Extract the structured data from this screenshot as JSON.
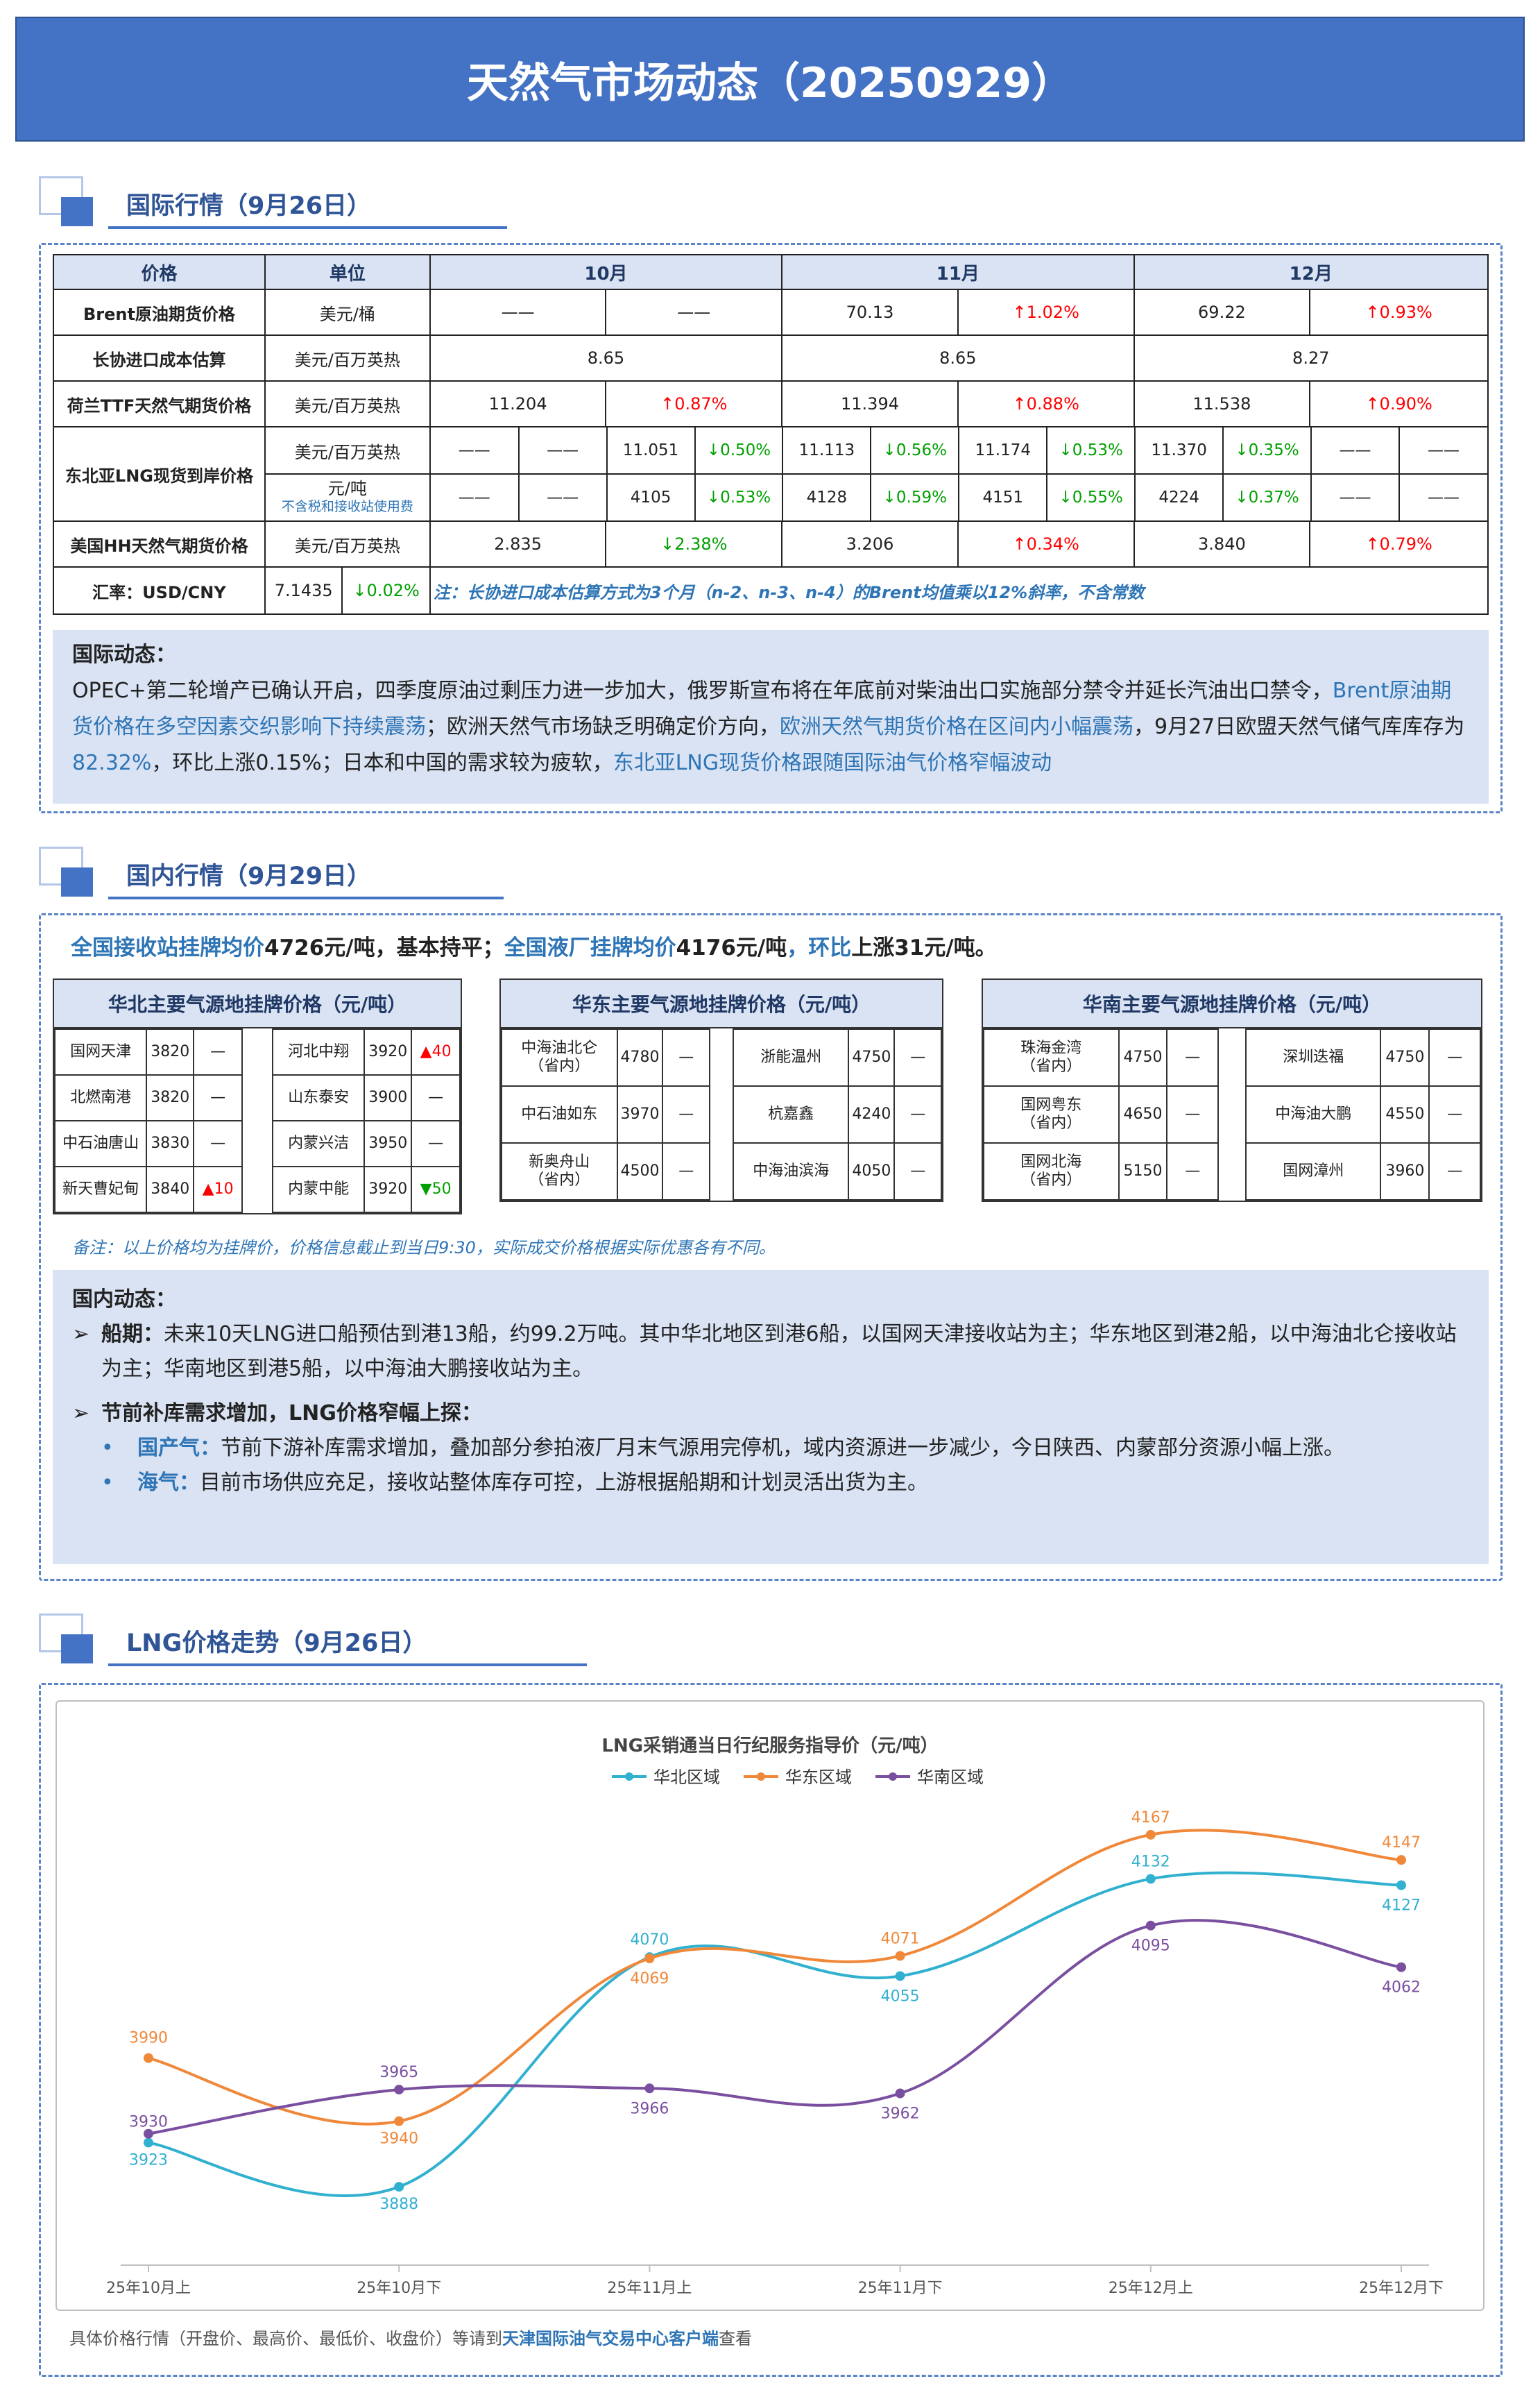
{
  "title": "天然气市场动态（20250929）",
  "sections": {
    "intl": "国际行情（9月26日）",
    "domestic": "国内行情（9月29日）",
    "lng": "LNG价格走势（9月26日）"
  },
  "intl_table": {
    "headers": [
      "价格",
      "单位",
      "10月",
      "11月",
      "12月"
    ],
    "brent": {
      "label": "Brent原油期货价格",
      "unit": "美元/桶",
      "m10": "——",
      "m10c": "——",
      "m11": "70.13",
      "m11c": "↑1.02%",
      "m12": "69.22",
      "m12c": "↑0.93%"
    },
    "longxie": {
      "label": "长协进口成本估算",
      "unit": "美元/百万英热",
      "m10": "8.65",
      "m11": "8.65",
      "m12": "8.27"
    },
    "ttf": {
      "label": "荷兰TTF天然气期货价格",
      "unit": "美元/百万英热",
      "m10": "11.204",
      "m10c": "↑0.87%",
      "m11": "11.394",
      "m11c": "↑0.88%",
      "m12": "11.538",
      "m12c": "↑0.90%"
    },
    "nea": {
      "label": "东北亚LNG现货到岸价格",
      "unit1": "美元/百万英热",
      "unit2": "元/吨",
      "unit2note": "不含税和接收站使用费",
      "r1": [
        "——",
        "——",
        "11.051",
        "↓0.50%",
        "11.113",
        "↓0.56%",
        "11.174",
        "↓0.53%",
        "11.370",
        "↓0.35%",
        "——",
        "——"
      ],
      "r2": [
        "——",
        "——",
        "4105",
        "↓0.53%",
        "4128",
        "↓0.59%",
        "4151",
        "↓0.55%",
        "4224",
        "↓0.37%",
        "——",
        "——"
      ]
    },
    "hh": {
      "label": "美国HH天然气期货价格",
      "unit": "美元/百万英热",
      "m10": "2.835",
      "m10c": "↓2.38%",
      "m11": "3.206",
      "m11c": "↑0.34%",
      "m12": "3.840",
      "m12c": "↑0.79%"
    },
    "fx": {
      "label": "汇率：USD/CNY",
      "value": "7.1435",
      "change": "↓0.02%",
      "note": "注：长协进口成本估算方式为3个月（n-2、n-3、n-4）的Brent均值乘以12%斜率，不含常数"
    }
  },
  "intl_news": {
    "heading": "国际动态：",
    "p1": "OPEC+第二轮增产已确认开启，四季度原油过剩压力进一步加大，俄罗斯宣布将在年底前对柴油出口实施部分禁令并延长汽油出口禁令，",
    "p2": "Brent原油期货价格在多空因素交织影响下持续震荡",
    "p3": "；欧洲天然气市场缺乏明确定价方向，",
    "p4": "欧洲天然气期货价格在区间内小幅震荡",
    "p5": "，9月27日欧盟天然气储气库库存为",
    "p6": "82.32%",
    "p7": "，环比上涨0.15%；日本和中国的需求较为疲软，",
    "p8": "东北亚LNG现货价格跟随国际油气价格窄幅波动"
  },
  "domestic_summary": {
    "a": "全国接收站挂牌均价",
    "b": "4726元/吨，基本持平；",
    "c": "全国液厂挂牌均价",
    "d": "4176元/吨",
    "e": "，环比",
    "f": "上涨31元/吨。"
  },
  "north": {
    "title": "华北主要气源地挂牌价格（元/吨）",
    "left": [
      [
        "国网天津",
        "3820",
        "—"
      ],
      [
        "北燃南港",
        "3820",
        "—"
      ],
      [
        "中石油唐山",
        "3830",
        "—"
      ],
      [
        "新天曹妃甸",
        "3840",
        "▲10"
      ]
    ],
    "right": [
      [
        "河北中翔",
        "3920",
        "▲40"
      ],
      [
        "山东泰安",
        "3900",
        "—"
      ],
      [
        "内蒙兴洁",
        "3950",
        "—"
      ],
      [
        "内蒙中能",
        "3920",
        "▼50"
      ]
    ]
  },
  "east": {
    "title": "华东主要气源地挂牌价格（元/吨）",
    "left": [
      [
        "中海油北仑\n（省内）",
        "4780",
        "—"
      ],
      [
        "中石油如东",
        "3970",
        "—"
      ],
      [
        "新奥舟山\n（省内）",
        "4500",
        "—"
      ]
    ],
    "right": [
      [
        "浙能温州",
        "4750",
        "—"
      ],
      [
        "杭嘉鑫",
        "4240",
        "—"
      ],
      [
        "中海油滨海",
        "4050",
        "—"
      ]
    ]
  },
  "south": {
    "title": "华南主要气源地挂牌价格（元/吨）",
    "left": [
      [
        "珠海金湾\n（省内）",
        "4750",
        "—"
      ],
      [
        "国网粤东\n（省内）",
        "4650",
        "—"
      ],
      [
        "国网北海\n（省内）",
        "5150",
        "—"
      ]
    ],
    "right": [
      [
        "深圳迭福",
        "4750",
        "—"
      ],
      [
        "中海油大鹏",
        "4550",
        "—"
      ],
      [
        "国网漳州",
        "3960",
        "—"
      ]
    ]
  },
  "remark": "备注：以上价格均为挂牌价，价格信息截止到当日9:30，实际成交价格根据实际优惠各有不同。",
  "dom_news": {
    "heading": "国内动态：",
    "b1k": "船期：",
    "b1": "未来10天LNG进口船预估到港13船，约99.2万吨。其中华北地区到港6船，以国网天津接收站为主；华东地区到港2船，以中海油北仑接收站为主；华南地区到港5船，以中海油大鹏接收站为主。",
    "b2k": "节前补库需求增加，LNG价格窄幅上探：",
    "s1k": "国产气：",
    "s1": "节前下游补库需求增加，叠加部分参拍液厂月末气源用完停机，域内资源进一步减少，今日陕西、内蒙部分资源小幅上涨。",
    "s2k": "海气：",
    "s2": "目前市场供应充足，接收站整体库存可控，上游根据船期和计划灵活出货为主。"
  },
  "chart_data": {
    "type": "line",
    "title": "LNG采销通当日行纪服务指导价（元/吨）",
    "categories": [
      "25年10月上",
      "25年10月下",
      "25年11月上",
      "25年11月下",
      "25年12月上",
      "25年12月下"
    ],
    "series": [
      {
        "name": "华北区域",
        "values": [
          3923,
          3888,
          4070,
          4055,
          4132,
          4127
        ],
        "color": "#31b0cf"
      },
      {
        "name": "华东区域",
        "values": [
          3990,
          3940,
          4069,
          4071,
          4167,
          4147
        ],
        "color": "#f0883a"
      },
      {
        "name": "华南区域",
        "values": [
          3930,
          3965,
          3966,
          3962,
          4095,
          4062
        ],
        "color": "#7a4fa0"
      }
    ],
    "ylim": [
      3860,
      4190
    ],
    "grid": false,
    "legend": "top"
  },
  "footer": {
    "a": "具体价格行情（开盘价、最高价、最低价、收盘价）等请到",
    "b": "天津国际油气交易中心客户端",
    "c": "查看"
  }
}
